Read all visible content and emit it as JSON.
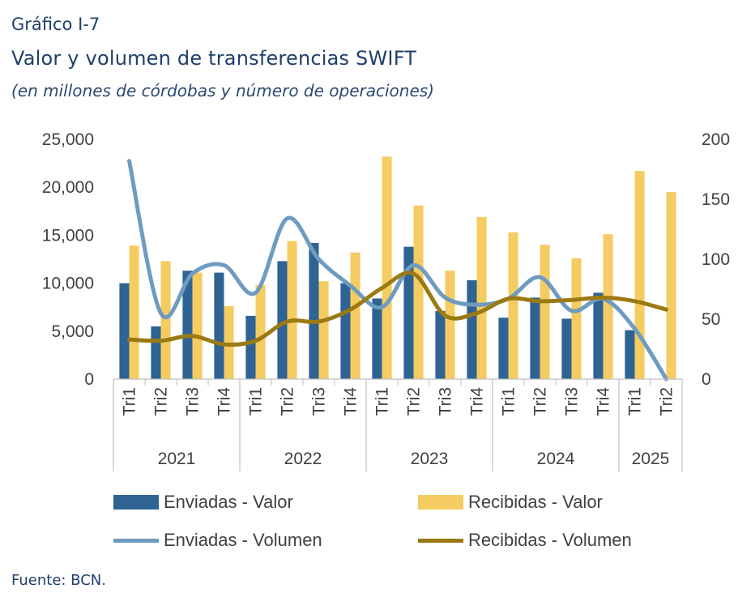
{
  "header": {
    "label": "Gráfico I-7",
    "title": "Valor y volumen de transferencias SWIFT",
    "subtitle": "(en millones de córdobas y número de operaciones)"
  },
  "source": "Fuente: BCN.",
  "colors": {
    "enviadas_valor": "#2e6393",
    "recibidas_valor": "#f4cc61",
    "enviadas_volumen": "#6f9bc0",
    "recibidas_volumen": "#9b7a12"
  },
  "chart_data": {
    "type": "bar",
    "categories": [
      "Tri1",
      "Tri2",
      "Tri3",
      "Tri4",
      "Tri1",
      "Tri2",
      "Tri3",
      "Tri4",
      "Tri1",
      "Tri2",
      "Tri3",
      "Tri4",
      "Tri1",
      "Tri2",
      "Tri3",
      "Tri4",
      "Tri1",
      "Tri2"
    ],
    "years": [
      {
        "label": "2021",
        "count": 4
      },
      {
        "label": "2022",
        "count": 4
      },
      {
        "label": "2023",
        "count": 4
      },
      {
        "label": "2024",
        "count": 4
      },
      {
        "label": "2025",
        "count": 2
      }
    ],
    "y_left": {
      "min": 0,
      "max": 25000,
      "ticks": [
        "0",
        "5,000",
        "10,000",
        "15,000",
        "20,000",
        "25,000"
      ]
    },
    "y_right": {
      "min": 0,
      "max": 200,
      "ticks": [
        "0",
        "50",
        "100",
        "150",
        "200"
      ]
    },
    "series": [
      {
        "name": "Enviadas - Valor",
        "kind": "bar",
        "axis": "left",
        "values": [
          10000,
          5500,
          11300,
          11100,
          6600,
          12300,
          14200,
          10000,
          8400,
          13800,
          7100,
          10300,
          6400,
          8500,
          6300,
          9000,
          5100,
          0
        ]
      },
      {
        "name": "Recibidas - Valor",
        "kind": "bar",
        "axis": "left",
        "values": [
          13900,
          12300,
          11100,
          7600,
          9800,
          14400,
          10200,
          13200,
          23200,
          18100,
          11300,
          16900,
          15300,
          14000,
          12600,
          15100,
          21700,
          19500
        ]
      },
      {
        "name": "Enviadas - Volumen",
        "kind": "line",
        "axis": "right",
        "values": [
          182,
          55,
          88,
          95,
          72,
          134,
          100,
          78,
          60,
          95,
          68,
          62,
          67,
          85,
          57,
          67,
          42,
          0
        ]
      },
      {
        "name": "Recibidas - Volumen",
        "kind": "line",
        "axis": "right",
        "values": [
          33,
          32,
          36,
          29,
          32,
          48,
          48,
          58,
          76,
          88,
          53,
          55,
          67,
          65,
          66,
          68,
          65,
          58
        ]
      }
    ],
    "grid": false,
    "legend_position": "bottom"
  }
}
